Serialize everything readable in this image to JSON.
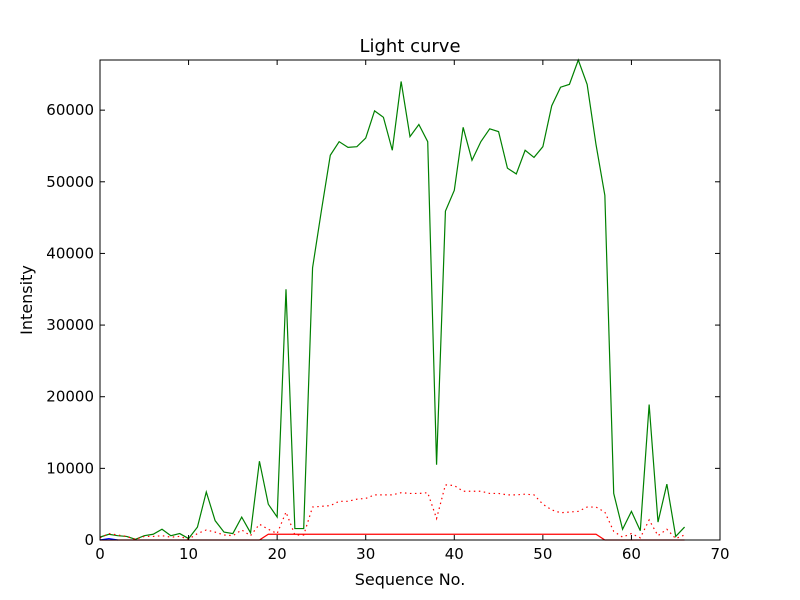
{
  "chart_data": {
    "type": "line",
    "title": "Light curve",
    "xlabel": "Sequence No.",
    "ylabel": "Intensity",
    "xlim": [
      0,
      70
    ],
    "ylim": [
      0,
      67000
    ],
    "xticks": [
      0,
      10,
      20,
      30,
      40,
      50,
      60,
      70
    ],
    "yticks": [
      0,
      10000,
      20000,
      30000,
      40000,
      50000,
      60000
    ],
    "grid": false,
    "series": [
      {
        "color": "#008000",
        "style": "solid",
        "x": [
          0,
          1,
          2,
          3,
          4,
          5,
          6,
          7,
          8,
          9,
          10,
          11,
          12,
          13,
          14,
          15,
          16,
          17,
          18,
          19,
          20,
          21,
          22,
          23,
          24,
          25,
          26,
          27,
          28,
          29,
          30,
          31,
          32,
          33,
          34,
          35,
          36,
          37,
          38,
          39,
          40,
          41,
          42,
          43,
          44,
          45,
          46,
          47,
          48,
          49,
          50,
          51,
          52,
          53,
          54,
          55,
          56,
          57,
          58,
          59,
          60,
          61,
          62,
          63,
          64,
          65,
          66
        ],
        "values": [
          400,
          800,
          600,
          500,
          100,
          600,
          800,
          1500,
          600,
          900,
          200,
          1800,
          6700,
          2700,
          1100,
          900,
          3200,
          1000,
          11000,
          5000,
          3200,
          35000,
          1600,
          1600,
          38000,
          46000,
          53700,
          55600,
          54800,
          54900,
          56100,
          59900,
          59000,
          54400,
          64000,
          56300,
          58000,
          55600,
          10500,
          45900,
          48800,
          57600,
          53000,
          55600,
          57400,
          57000,
          51900,
          51100,
          54400,
          53400,
          54900,
          60600,
          63200,
          63600,
          67000,
          63600,
          55200,
          48100,
          6500,
          1500,
          4000,
          1300,
          18900,
          2500,
          7800,
          500,
          1800
        ]
      },
      {
        "color": "#ff0000",
        "style": "dotted",
        "x": [
          0,
          1,
          2,
          3,
          4,
          5,
          6,
          7,
          8,
          9,
          10,
          11,
          12,
          13,
          14,
          15,
          16,
          17,
          18,
          19,
          20,
          21,
          22,
          23,
          24,
          25,
          26,
          27,
          28,
          29,
          30,
          31,
          32,
          33,
          34,
          35,
          36,
          37,
          38,
          39,
          40,
          41,
          42,
          43,
          44,
          45,
          46,
          47,
          48,
          49,
          50,
          51,
          52,
          53,
          54,
          55,
          56,
          57,
          58,
          59,
          60,
          61,
          62,
          63,
          64,
          65,
          66
        ],
        "values": [
          300,
          900,
          700,
          500,
          100,
          500,
          500,
          600,
          400,
          500,
          100,
          900,
          1400,
          1100,
          700,
          600,
          1400,
          600,
          2200,
          1500,
          900,
          3900,
          700,
          700,
          4600,
          4700,
          4800,
          5400,
          5400,
          5700,
          5800,
          6300,
          6300,
          6300,
          6600,
          6500,
          6500,
          6600,
          3000,
          7700,
          7600,
          6800,
          6800,
          6800,
          6500,
          6500,
          6300,
          6300,
          6400,
          6300,
          5000,
          4200,
          3800,
          3900,
          4000,
          4600,
          4600,
          3900,
          1200,
          400,
          900,
          300,
          2800,
          600,
          1500,
          200,
          700
        ]
      },
      {
        "color": "#ff0000",
        "style": "solid",
        "x": [
          0,
          18,
          19,
          56,
          57,
          66
        ],
        "values": [
          0,
          0,
          800,
          800,
          0,
          0
        ]
      },
      {
        "color": "#0000ff",
        "style": "solid",
        "x": [
          0,
          1,
          2
        ],
        "values": [
          0,
          200,
          0
        ]
      }
    ]
  }
}
